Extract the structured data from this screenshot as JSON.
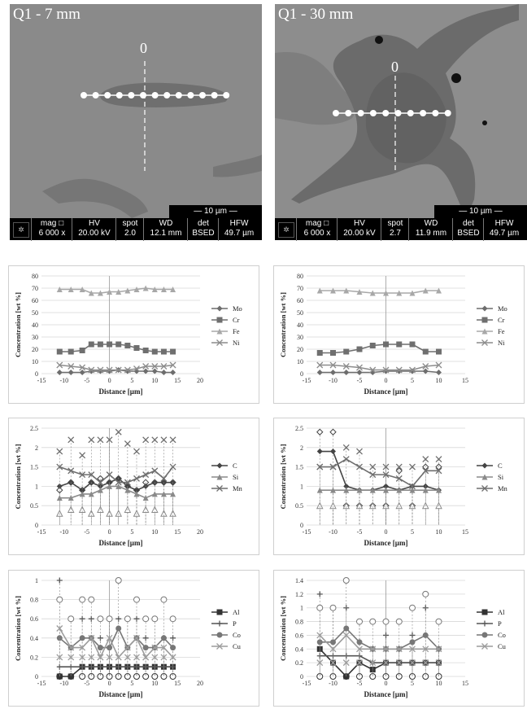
{
  "sem_images": [
    {
      "title": "Q1 - 7 mm",
      "marker": "0",
      "scale": "10 µm",
      "info": [
        [
          "mag □",
          "6 000 x"
        ],
        [
          "HV",
          "20.00 kV"
        ],
        [
          "spot",
          "2.0"
        ],
        [
          "WD",
          "12.1 mm"
        ],
        [
          "det",
          "BSED"
        ],
        [
          "HFW",
          "49.7 µm"
        ]
      ]
    },
    {
      "title": "Q1 - 30 mm",
      "marker": "0",
      "scale": "10 µm",
      "info": [
        [
          "mag □",
          "6 000 x"
        ],
        [
          "HV",
          "20.00 kV"
        ],
        [
          "spot",
          "2.7"
        ],
        [
          "WD",
          "11.9 mm"
        ],
        [
          "det",
          "BSED"
        ],
        [
          "HFW",
          "49.7 µm"
        ]
      ]
    }
  ],
  "chart_data": [
    {
      "type": "line",
      "xlabel": "Distance [µm]",
      "ylabel": "Concentration [wt %]",
      "xlim": [
        -15,
        20
      ],
      "xticks": [
        -15,
        -10,
        -5,
        0,
        5,
        10,
        15,
        20
      ],
      "ylim": [
        0,
        80
      ],
      "yticks": [
        0,
        10,
        20,
        30,
        40,
        50,
        60,
        70,
        80
      ],
      "x": [
        -11,
        -8.5,
        -6,
        -4,
        -2,
        0,
        2,
        4,
        6,
        8,
        10,
        12,
        14
      ],
      "series": [
        {
          "name": "Mo",
          "color": "#6d6d6d",
          "marker": "diamond",
          "values": [
            1,
            1,
            1,
            2,
            2,
            2,
            3,
            2,
            2,
            2,
            2,
            1,
            1
          ]
        },
        {
          "name": "Cr",
          "color": "#6f6f6f",
          "marker": "square",
          "values": [
            18,
            18,
            19,
            24,
            24,
            24,
            24,
            23,
            21,
            19,
            18,
            18,
            18
          ]
        },
        {
          "name": "Fe",
          "color": "#a8a8a8",
          "marker": "triangle",
          "values": [
            69,
            69,
            69,
            66,
            66,
            67,
            67,
            68,
            69,
            70,
            69,
            69,
            69
          ]
        },
        {
          "name": "Ni",
          "color": "#8c8c8c",
          "marker": "cross",
          "values": [
            7,
            6,
            5,
            3,
            3,
            3,
            3,
            3,
            4,
            6,
            6,
            6,
            7
          ]
        }
      ]
    },
    {
      "type": "line",
      "xlabel": "Distance [µm]",
      "ylabel": "Concentration [wt %]",
      "xlim": [
        -15,
        15
      ],
      "xticks": [
        -15,
        -10,
        -5,
        0,
        5,
        10,
        15
      ],
      "ylim": [
        0,
        80
      ],
      "yticks": [
        0,
        10,
        20,
        30,
        40,
        50,
        60,
        70,
        80
      ],
      "x": [
        -12.5,
        -10,
        -7.5,
        -5,
        -2.5,
        0,
        2.5,
        5,
        7.5,
        10
      ],
      "series": [
        {
          "name": "Mo",
          "color": "#6d6d6d",
          "marker": "diamond",
          "values": [
            1,
            1,
            1,
            1,
            1,
            2,
            2,
            2,
            2,
            1
          ]
        },
        {
          "name": "Cr",
          "color": "#6f6f6f",
          "marker": "square",
          "values": [
            17,
            17,
            18,
            20,
            23,
            24,
            24,
            24,
            18,
            18
          ]
        },
        {
          "name": "Fe",
          "color": "#a8a8a8",
          "marker": "triangle",
          "values": [
            68,
            68,
            68,
            67,
            66,
            66,
            66,
            66,
            68,
            68
          ]
        },
        {
          "name": "Ni",
          "color": "#8c8c8c",
          "marker": "cross",
          "values": [
            7,
            7,
            6,
            5,
            3,
            3,
            3,
            3,
            6,
            7
          ]
        }
      ]
    },
    {
      "type": "line",
      "xlabel": "Distance [µm]",
      "ylabel": "Concentration [wt %]",
      "xlim": [
        -15,
        20
      ],
      "xticks": [
        -15,
        -10,
        -5,
        0,
        5,
        10,
        15,
        20
      ],
      "ylim": [
        0,
        2.5
      ],
      "yticks": [
        0,
        0.5,
        1,
        1.5,
        2,
        2.5
      ],
      "x": [
        -11,
        -8.5,
        -6,
        -4,
        -2,
        0,
        2,
        4,
        6,
        8,
        10,
        12,
        14
      ],
      "errors": true,
      "series": [
        {
          "name": "C",
          "color": "#444444",
          "marker": "diamond",
          "values": [
            1.0,
            1.1,
            0.9,
            1.1,
            1.0,
            1.1,
            1.2,
            1.0,
            0.9,
            1.0,
            1.1,
            1.1,
            1.1
          ],
          "err": [
            0.9,
            1.1,
            0.9,
            1.1,
            1.2,
            1.1,
            1.2,
            1.0,
            0.9,
            1.1,
            1.1,
            1.1,
            1.1
          ]
        },
        {
          "name": "Si",
          "color": "#8a8a8a",
          "marker": "triangle",
          "values": [
            0.7,
            0.7,
            0.8,
            0.8,
            0.9,
            1.0,
            1.0,
            0.9,
            0.8,
            0.7,
            0.8,
            0.8,
            0.8
          ],
          "err": [
            0.3,
            0.4,
            0.4,
            0.3,
            0.4,
            0.3,
            0.3,
            0.4,
            0.3,
            0.4,
            0.4,
            0.3,
            0.3
          ]
        },
        {
          "name": "Mn",
          "color": "#6e6e6e",
          "marker": "cross",
          "values": [
            1.5,
            1.4,
            1.3,
            1.3,
            1.1,
            1.3,
            1.1,
            1.1,
            1.2,
            1.3,
            1.4,
            1.2,
            1.5
          ],
          "err": [
            1.9,
            2.2,
            1.8,
            2.2,
            2.2,
            2.2,
            2.4,
            2.1,
            1.9,
            2.2,
            2.2,
            2.2,
            2.2
          ]
        }
      ]
    },
    {
      "type": "line",
      "xlabel": "Distance [µm]",
      "ylabel": "Concentration [wt %]",
      "xlim": [
        -15,
        15
      ],
      "xticks": [
        -15,
        -10,
        -5,
        0,
        5,
        10,
        15
      ],
      "ylim": [
        0,
        2.5
      ],
      "yticks": [
        0,
        0.5,
        1,
        1.5,
        2,
        2.5
      ],
      "x": [
        -12.5,
        -10,
        -7.5,
        -5,
        -2.5,
        0,
        2.5,
        5,
        7.5,
        10
      ],
      "errors": true,
      "series": [
        {
          "name": "C",
          "color": "#444444",
          "marker": "diamond",
          "values": [
            1.9,
            1.9,
            1.0,
            0.9,
            0.9,
            1.0,
            0.9,
            1.0,
            1.0,
            0.9
          ],
          "err": [
            2.4,
            2.4,
            0.5,
            0.5,
            0.5,
            0.5,
            1.4,
            0.5,
            1.5,
            1.5
          ]
        },
        {
          "name": "Si",
          "color": "#8a8a8a",
          "marker": "triangle",
          "values": [
            0.9,
            0.9,
            0.9,
            0.9,
            0.9,
            0.9,
            0.9,
            0.9,
            0.9,
            0.9
          ],
          "err": [
            0.5,
            0.5,
            0.5,
            0.5,
            0.5,
            0.5,
            0.5,
            0.5,
            0.5,
            0.5
          ]
        },
        {
          "name": "Mn",
          "color": "#6e6e6e",
          "marker": "cross",
          "values": [
            1.5,
            1.5,
            1.7,
            1.5,
            1.3,
            1.3,
            1.2,
            1.0,
            1.4,
            1.4
          ],
          "err": [
            1.5,
            1.5,
            2.0,
            1.9,
            1.5,
            1.5,
            1.5,
            1.5,
            1.7,
            1.7
          ]
        }
      ]
    },
    {
      "type": "line",
      "xlabel": "Distance [µm]",
      "ylabel": "Concentration [wt %]",
      "xlim": [
        -15,
        20
      ],
      "xticks": [
        -15,
        -10,
        -5,
        0,
        5,
        10,
        15,
        20
      ],
      "ylim": [
        0,
        1
      ],
      "yticks": [
        0,
        0.2,
        0.4,
        0.6,
        0.8,
        1
      ],
      "x": [
        -11,
        -8.5,
        -6,
        -4,
        -2,
        0,
        2,
        4,
        6,
        8,
        10,
        12,
        14
      ],
      "errors": true,
      "series": [
        {
          "name": "Al",
          "color": "#333333",
          "marker": "square",
          "values": [
            0,
            0,
            0.1,
            0.1,
            0.1,
            0.1,
            0.1,
            0.1,
            0.1,
            0.1,
            0.1,
            0.1,
            0.1
          ],
          "err": [
            0,
            0,
            0,
            0,
            0,
            0,
            0,
            0,
            0,
            0,
            0,
            0,
            0
          ]
        },
        {
          "name": "P",
          "color": "#555555",
          "marker": "plus",
          "values": [
            0.1,
            0.1,
            0.1,
            0.1,
            0.1,
            0.1,
            0.1,
            0.1,
            0.1,
            0.1,
            0.1,
            0.1,
            0.1
          ],
          "err": [
            1.0,
            0.6,
            0.6,
            0.6,
            0.4,
            0.6,
            0.6,
            0.6,
            0.6,
            0.4,
            0.6,
            0.4,
            0.4
          ]
        },
        {
          "name": "Co",
          "color": "#777777",
          "marker": "circle",
          "values": [
            0.4,
            0.3,
            0.4,
            0.4,
            0.3,
            0.3,
            0.5,
            0.3,
            0.4,
            0.3,
            0.3,
            0.4,
            0.3
          ],
          "err": [
            0.8,
            0.6,
            0.8,
            0.8,
            0.6,
            0.6,
            1.0,
            0.6,
            0.8,
            0.6,
            0.6,
            0.8,
            0.6
          ]
        },
        {
          "name": "Cu",
          "color": "#9c9c9c",
          "marker": "cross",
          "values": [
            0.5,
            0.3,
            0.3,
            0.4,
            0.2,
            0.4,
            0.2,
            0.3,
            0.4,
            0.2,
            0.3,
            0.3,
            0.2
          ],
          "err": [
            0.2,
            0.2,
            0.2,
            0.2,
            0.2,
            0.2,
            0.2,
            0.2,
            0.2,
            0.2,
            0.2,
            0.2,
            0.2
          ]
        }
      ]
    },
    {
      "type": "line",
      "xlabel": "Distance [µm]",
      "ylabel": "Concentration [wt %]",
      "xlim": [
        -15,
        15
      ],
      "xticks": [
        -15,
        -10,
        -5,
        0,
        5,
        10,
        15
      ],
      "ylim": [
        0,
        1.4
      ],
      "yticks": [
        0,
        0.2,
        0.4,
        0.6,
        0.8,
        1,
        1.2,
        1.4
      ],
      "x": [
        -12.5,
        -10,
        -7.5,
        -5,
        -2.5,
        0,
        2.5,
        5,
        7.5,
        10
      ],
      "errors": true,
      "series": [
        {
          "name": "Al",
          "color": "#333333",
          "marker": "square",
          "values": [
            0.4,
            0.2,
            0,
            0.2,
            0.1,
            0.2,
            0.2,
            0.2,
            0.2,
            0.2
          ],
          "err": [
            0,
            0,
            0,
            0,
            0,
            0,
            0,
            0,
            0,
            0
          ]
        },
        {
          "name": "P",
          "color": "#555555",
          "marker": "plus",
          "values": [
            0.3,
            0.3,
            0.3,
            0.3,
            0.2,
            0.2,
            0.2,
            0.2,
            0.2,
            0.2
          ],
          "err": [
            1.2,
            1.0,
            1.0,
            0.8,
            0.4,
            0.6,
            0.4,
            0.6,
            1.0,
            0.4
          ]
        },
        {
          "name": "Co",
          "color": "#777777",
          "marker": "circle",
          "values": [
            0.5,
            0.5,
            0.7,
            0.5,
            0.4,
            0.4,
            0.4,
            0.5,
            0.6,
            0.4
          ],
          "err": [
            1.0,
            1.0,
            1.4,
            0.8,
            0.8,
            0.8,
            0.8,
            1.0,
            1.2,
            0.8
          ]
        },
        {
          "name": "Cu",
          "color": "#9c9c9c",
          "marker": "cross",
          "values": [
            0.6,
            0.4,
            0.6,
            0.4,
            0.4,
            0.4,
            0.4,
            0.4,
            0.4,
            0.4
          ],
          "err": [
            0.2,
            0.2,
            0.2,
            0.2,
            0.2,
            0.2,
            0.2,
            0.2,
            0.2,
            0.2
          ]
        }
      ]
    }
  ]
}
